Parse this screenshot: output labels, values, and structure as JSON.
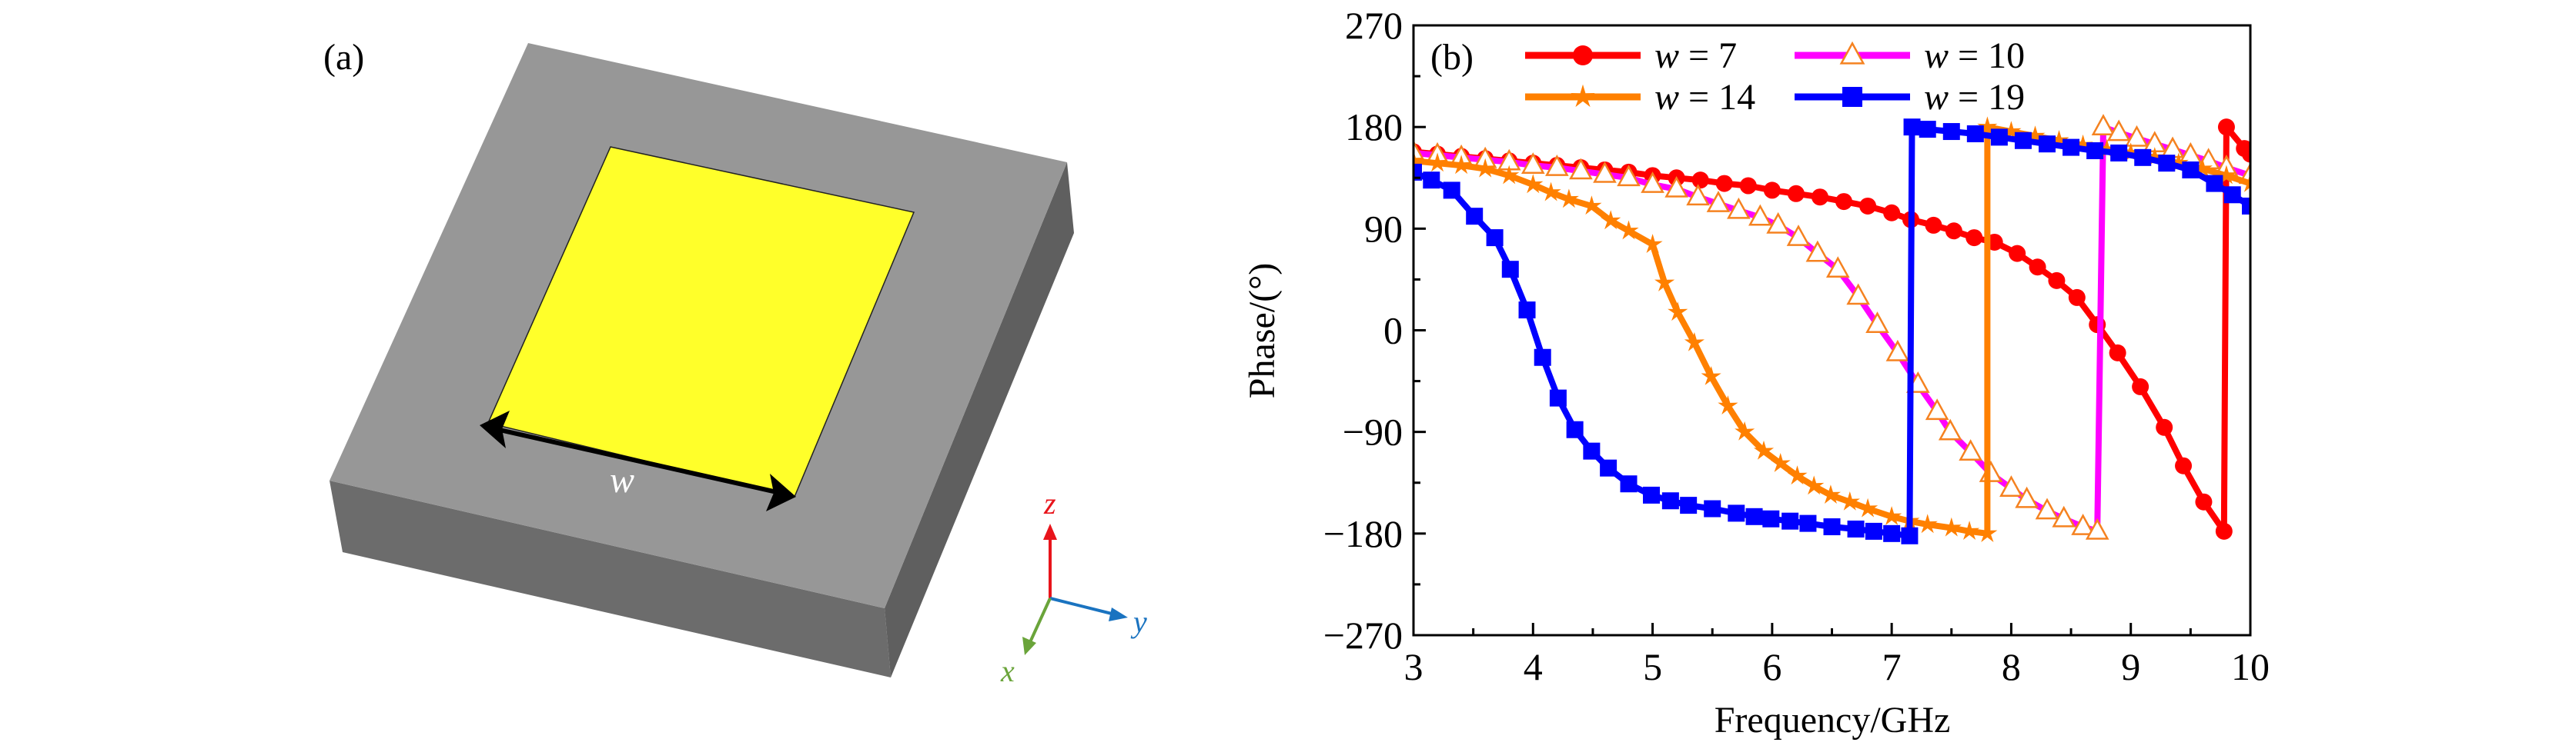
{
  "panel_a": {
    "label": "(a)",
    "dimension_label": "w",
    "axes": {
      "z": "z",
      "y": "y",
      "x": "x"
    },
    "colors": {
      "substrate_top": "#979797",
      "substrate_left": "#6c6c6c",
      "substrate_right": "#5f5f5f",
      "patch": "#ffff2a",
      "z_axis": "#e8141b",
      "y_axis": "#1a73c0",
      "x_axis": "#6aa43a"
    }
  },
  "chart_data": {
    "type": "line",
    "panel_label": "(b)",
    "xlabel": "Frequency/GHz",
    "ylabel": "Phase/(°)",
    "xlim": [
      3,
      10
    ],
    "ylim": [
      -270,
      270
    ],
    "xticks": [
      3,
      4,
      5,
      6,
      7,
      8,
      9,
      10
    ],
    "yticks": [
      -270,
      -180,
      -90,
      0,
      90,
      180,
      270
    ],
    "ytick_labels": [
      "−270",
      "−180",
      "−90",
      "0",
      "90",
      "180",
      "270"
    ],
    "grid": false,
    "legend_placement": "top",
    "series": [
      {
        "name": "w = 7",
        "w_value": "7",
        "color": "#ff0000",
        "marker": "circle",
        "x": [
          3.0,
          3.2,
          3.4,
          3.6,
          3.8,
          4.0,
          4.2,
          4.4,
          4.6,
          4.8,
          5.0,
          5.2,
          5.4,
          5.6,
          5.8,
          6.0,
          6.2,
          6.4,
          6.6,
          6.8,
          7.0,
          7.16,
          7.35,
          7.52,
          7.69,
          7.86,
          8.05,
          8.22,
          8.38,
          8.55,
          8.72,
          8.89,
          9.08,
          9.28,
          9.44,
          9.61,
          9.78,
          9.8,
          9.95,
          10.0
        ],
        "y": [
          158,
          156,
          154,
          152,
          150,
          148,
          146,
          144,
          142,
          140,
          137,
          135,
          133,
          130,
          128,
          124,
          121,
          118,
          114,
          110,
          104,
          98,
          93,
          88,
          82,
          78,
          68,
          56,
          44,
          29,
          5,
          -20,
          -50,
          -86,
          -120,
          -152,
          -178,
          180,
          161,
          156
        ]
      },
      {
        "name": "w = 10",
        "w_value": "10",
        "color": "#ff00ff",
        "marker": "triangle-open",
        "marker_edge": "#f58220",
        "x": [
          3.0,
          3.2,
          3.4,
          3.6,
          3.8,
          4.0,
          4.2,
          4.4,
          4.6,
          4.8,
          5.0,
          5.2,
          5.38,
          5.55,
          5.72,
          5.9,
          6.05,
          6.22,
          6.38,
          6.55,
          6.72,
          6.88,
          7.05,
          7.22,
          7.38,
          7.49,
          7.66,
          7.83,
          8.0,
          8.13,
          8.3,
          8.44,
          8.6,
          8.72,
          8.77,
          8.9,
          9.05,
          9.2,
          9.35,
          9.5,
          9.65,
          9.8,
          10.0
        ],
        "y": [
          157,
          155,
          153,
          151,
          149,
          146,
          144,
          141,
          138,
          135,
          129,
          125,
          118,
          112,
          106,
          100,
          93,
          82,
          68,
          54,
          30,
          5,
          -20,
          -48,
          -72,
          -90,
          -108,
          -127,
          -140,
          -150,
          -160,
          -167,
          -174,
          -178,
          180,
          175,
          170,
          165,
          160,
          155,
          150,
          144,
          137
        ]
      },
      {
        "name": "w = 14",
        "w_value": "14",
        "color": "#ff8000",
        "marker": "star",
        "x": [
          3.0,
          3.2,
          3.4,
          3.6,
          3.8,
          4.0,
          4.15,
          4.3,
          4.49,
          4.65,
          4.8,
          5.0,
          5.1,
          5.21,
          5.35,
          5.49,
          5.63,
          5.77,
          5.93,
          6.07,
          6.21,
          6.35,
          6.49,
          6.65,
          6.8,
          7.0,
          7.15,
          7.3,
          7.5,
          7.65,
          7.8,
          7.8,
          8.0,
          8.2,
          8.4,
          8.6,
          8.8,
          9.0,
          9.2,
          9.4,
          9.6,
          9.8,
          10.0
        ],
        "y": [
          150,
          148,
          146,
          143,
          137,
          129,
          122,
          116,
          110,
          97,
          88,
          76,
          42,
          16,
          -11,
          -41,
          -67,
          -90,
          -107,
          -118,
          -129,
          -138,
          -146,
          -152,
          -158,
          -165,
          -169,
          -172,
          -175,
          -178,
          -180,
          180,
          176,
          172,
          168,
          164,
          160,
          157,
          153,
          148,
          143,
          137,
          130
        ]
      },
      {
        "name": "w = 19",
        "w_value": "19",
        "color": "#0000ff",
        "marker": "square",
        "x": [
          3.0,
          3.15,
          3.32,
          3.51,
          3.68,
          3.81,
          3.95,
          4.08,
          4.21,
          4.35,
          4.49,
          4.63,
          4.8,
          4.99,
          5.15,
          5.3,
          5.5,
          5.7,
          5.85,
          5.99,
          6.15,
          6.3,
          6.5,
          6.7,
          6.85,
          7.0,
          7.15,
          7.17,
          7.3,
          7.5,
          7.7,
          7.9,
          8.1,
          8.3,
          8.5,
          8.7,
          8.9,
          9.1,
          9.3,
          9.5,
          9.7,
          9.85,
          10.0
        ],
        "y": [
          140,
          133,
          124,
          101,
          82,
          54,
          18,
          -24,
          -60,
          -88,
          -107,
          -122,
          -136,
          -146,
          -151,
          -155,
          -158,
          -162,
          -165,
          -167,
          -169,
          -171,
          -174,
          -176,
          -178,
          -180,
          -182,
          180,
          178,
          176,
          174,
          171,
          168,
          165,
          162,
          159,
          157,
          153,
          148,
          142,
          130,
          120,
          110
        ]
      }
    ]
  }
}
